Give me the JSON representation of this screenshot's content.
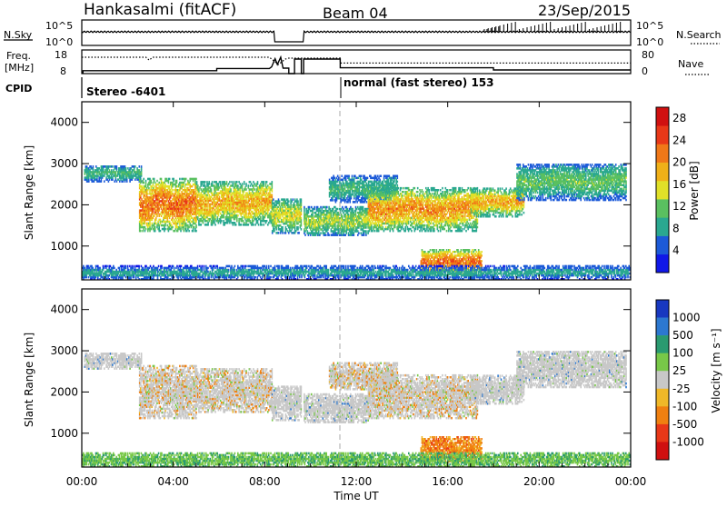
{
  "header": {
    "station": "Hankasalmi (fitACF)",
    "beam": "Beam 04",
    "date": "23/Sep/2015"
  },
  "status_panels": {
    "nsky_label": "N.Sky",
    "nsearch_label": "N.Search",
    "freq_label_1": "Freq.",
    "freq_label_2": "[MHz]",
    "nave_label": "Nave",
    "cpid_label": "CPID",
    "noise_left_ticks": [
      "10^5",
      "10^0"
    ],
    "noise_right_ticks": [
      "10^5",
      "10^0"
    ],
    "freq_ticks": [
      "18",
      "8"
    ],
    "nave_ticks": [
      "80",
      "0"
    ],
    "cpid_modes": [
      {
        "label": "Stereo -6401",
        "start_hour": 0
      },
      {
        "label": "normal (fast stereo) 153",
        "start_hour": 11.25
      }
    ],
    "freq_solid": [
      [
        0,
        8.3
      ],
      [
        0.05,
        8.3
      ],
      [
        0.05,
        9.6
      ],
      [
        5.9,
        9.6
      ],
      [
        5.9,
        10.8
      ],
      [
        8.2,
        10.8
      ],
      [
        8.3,
        11.7
      ],
      [
        8.45,
        16.2
      ],
      [
        8.55,
        13
      ],
      [
        8.7,
        17
      ],
      [
        8.8,
        11
      ],
      [
        9.05,
        11
      ],
      [
        9.05,
        8
      ],
      [
        9.3,
        8
      ],
      [
        9.3,
        16
      ],
      [
        9.6,
        16
      ],
      [
        9.6,
        8
      ],
      [
        9.7,
        8
      ],
      [
        9.7,
        16
      ],
      [
        11.3,
        16
      ],
      [
        11.3,
        11.2
      ],
      [
        18,
        11.2
      ],
      [
        18,
        10
      ],
      [
        24,
        10
      ]
    ],
    "freq_dotted": [
      [
        0,
        17
      ],
      [
        2.8,
        17
      ],
      [
        2.95,
        15.4
      ],
      [
        3.1,
        17
      ],
      [
        8.2,
        17
      ],
      [
        8.3,
        16
      ],
      [
        8.6,
        13
      ],
      [
        8.9,
        16
      ],
      [
        9.05,
        16.5
      ],
      [
        11.3,
        16.5
      ],
      [
        11.3,
        13.8
      ],
      [
        24,
        13.8
      ]
    ]
  },
  "chart_data": [
    {
      "type": "heatmap",
      "title": "Power",
      "ylabel": "Slant Range [km]",
      "xlabel": "",
      "xlim": [
        0,
        24
      ],
      "ylim": [
        180,
        4500
      ],
      "xticks": [
        "00:00",
        "04:00",
        "08:00",
        "12:00",
        "16:00",
        "20:00",
        "00:00"
      ],
      "yticks": [
        1000,
        2000,
        3000,
        4000
      ],
      "colorbar": {
        "label": "Power [dB]",
        "ticks": [
          4,
          8,
          12,
          16,
          20,
          24,
          28
        ],
        "range": [
          0,
          30
        ],
        "colors": [
          "#1018e8",
          "#1c5ad8",
          "#2aa890",
          "#5ac060",
          "#e0e028",
          "#f0b018",
          "#f07818",
          "#e83818",
          "#d01010"
        ]
      }
    },
    {
      "type": "heatmap",
      "title": "Velocity",
      "ylabel": "Slant Range [km]",
      "xlabel": "Time UT",
      "xlim": [
        0,
        24
      ],
      "ylim": [
        180,
        4500
      ],
      "xticks": [
        "00:00",
        "04:00",
        "08:00",
        "12:00",
        "16:00",
        "20:00",
        "00:00"
      ],
      "yticks": [
        1000,
        2000,
        3000,
        4000
      ],
      "colorbar": {
        "label": "Velocity [m s⁻¹]",
        "ticks": [
          "1000",
          "500",
          "100",
          "25",
          "-25",
          "-100",
          "-500",
          "-1000"
        ],
        "colors": [
          "#1838c0",
          "#2c78d0",
          "#2a9a70",
          "#78c848",
          "#c8c8c8",
          "#f0b828",
          "#f08010",
          "#e83818",
          "#d01010"
        ]
      }
    }
  ],
  "echo_regions": [
    {
      "t0": 0.1,
      "t1": 2.6,
      "r0": 2550,
      "r1": 2950,
      "p": [
        3,
        12
      ],
      "v": "mostly_grey"
    },
    {
      "t0": 2.5,
      "t1": 5.0,
      "r0": 1350,
      "r1": 2650,
      "p": [
        6,
        26
      ],
      "v": "grey_orange"
    },
    {
      "t0": 5.0,
      "t1": 8.3,
      "r0": 1500,
      "r1": 2550,
      "p": [
        5,
        22
      ],
      "v": "grey_orange"
    },
    {
      "t0": 8.3,
      "t1": 9.6,
      "r0": 1300,
      "r1": 2150,
      "p": [
        4,
        18
      ],
      "v": "mostly_grey"
    },
    {
      "t0": 9.7,
      "t1": 12.5,
      "r0": 1250,
      "r1": 1950,
      "p": [
        4,
        16
      ],
      "v": "mostly_grey"
    },
    {
      "t0": 10.8,
      "t1": 13.8,
      "r0": 2050,
      "r1": 2700,
      "p": [
        3,
        12
      ],
      "v": "grey_orange"
    },
    {
      "t0": 12.5,
      "t1": 17.3,
      "r0": 1350,
      "r1": 2400,
      "p": [
        5,
        24
      ],
      "v": "grey_orange"
    },
    {
      "t0": 17.0,
      "t1": 19.3,
      "r0": 1700,
      "r1": 2400,
      "p": [
        5,
        22
      ],
      "v": "mostly_grey"
    },
    {
      "t0": 19.0,
      "t1": 23.8,
      "r0": 2100,
      "r1": 3000,
      "p": [
        3,
        14
      ],
      "v": "mostly_grey"
    },
    {
      "t0": 14.8,
      "t1": 17.5,
      "r0": 300,
      "r1": 900,
      "p": [
        8,
        26
      ],
      "v": "orange"
    },
    {
      "t0": 0.0,
      "t1": 24.0,
      "r0": 180,
      "r1": 500,
      "p": [
        2,
        10
      ],
      "v": "green"
    }
  ]
}
